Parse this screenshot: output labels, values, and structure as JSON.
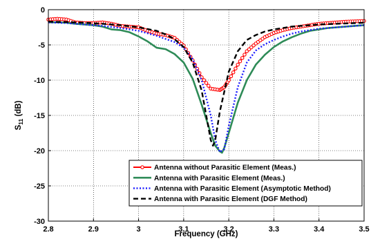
{
  "chart_data": {
    "type": "line",
    "xlabel": "Frequency (GHz)",
    "ylabel_main": "S",
    "ylabel_sub": "11",
    "ylabel_unit": " (dB)",
    "xlim": [
      2.8,
      3.5
    ],
    "ylim": [
      -30,
      0
    ],
    "xticks": [
      2.8,
      2.9,
      3.0,
      3.1,
      3.2,
      3.3,
      3.4,
      3.5
    ],
    "xtick_labels": [
      "2.8",
      "2.9",
      "3",
      "3.1",
      "3.2",
      "3.3",
      "3.4",
      "3.5"
    ],
    "yticks": [
      0,
      -5,
      -10,
      -15,
      -20,
      -25,
      -30
    ],
    "ytick_labels": [
      "0",
      "-5",
      "-10",
      "-15",
      "-20",
      "-25",
      "-30"
    ],
    "grid": true,
    "legend_position": "bottom-right",
    "series": [
      {
        "name": "Antenna without Parasitic Element (Meas.)",
        "color": "#ff0000",
        "style": "solid-circle-markers",
        "x": [
          2.8,
          2.82,
          2.84,
          2.86,
          2.88,
          2.9,
          2.92,
          2.94,
          2.96,
          2.98,
          3.0,
          3.02,
          3.04,
          3.06,
          3.08,
          3.1,
          3.12,
          3.14,
          3.16,
          3.18,
          3.19,
          3.2,
          3.22,
          3.24,
          3.26,
          3.28,
          3.3,
          3.32,
          3.34,
          3.36,
          3.38,
          3.4,
          3.42,
          3.44,
          3.46,
          3.48,
          3.5
        ],
        "y": [
          -1.4,
          -1.3,
          -1.4,
          -1.8,
          -1.9,
          -1.9,
          -1.8,
          -2.0,
          -2.3,
          -2.4,
          -2.5,
          -3.0,
          -3.4,
          -3.6,
          -4.0,
          -5.1,
          -7.2,
          -9.6,
          -11.2,
          -11.4,
          -11.0,
          -10.0,
          -7.8,
          -5.9,
          -4.8,
          -3.9,
          -3.3,
          -2.9,
          -2.6,
          -2.4,
          -2.2,
          -2.0,
          -1.9,
          -1.8,
          -1.7,
          -1.65,
          -1.6
        ]
      },
      {
        "name": "Antenna with Parasitic Element (Meas.)",
        "color": "#2e8b57",
        "style": "solid",
        "x": [
          2.8,
          2.82,
          2.84,
          2.86,
          2.88,
          2.9,
          2.92,
          2.94,
          2.96,
          2.98,
          3.0,
          3.02,
          3.04,
          3.06,
          3.08,
          3.1,
          3.12,
          3.14,
          3.16,
          3.17,
          3.18,
          3.185,
          3.19,
          3.2,
          3.22,
          3.24,
          3.26,
          3.28,
          3.3,
          3.32,
          3.34,
          3.36,
          3.38,
          3.4,
          3.42,
          3.44,
          3.46,
          3.48,
          3.5
        ],
        "y": [
          -1.8,
          -1.8,
          -1.85,
          -2.0,
          -2.1,
          -2.2,
          -2.4,
          -2.8,
          -2.9,
          -3.2,
          -3.8,
          -4.5,
          -5.4,
          -5.6,
          -6.3,
          -7.5,
          -9.8,
          -13.5,
          -17.5,
          -19.3,
          -20.1,
          -20.3,
          -19.6,
          -17.5,
          -13.2,
          -10.0,
          -7.8,
          -6.4,
          -5.3,
          -4.5,
          -3.9,
          -3.4,
          -3.0,
          -2.8,
          -2.6,
          -2.5,
          -2.4,
          -2.3,
          -2.2
        ]
      },
      {
        "name": "Antenna with Parasitic Element (Asymptotic Method)",
        "color": "#1a1aff",
        "style": "dotted",
        "x": [
          2.8,
          2.84,
          2.88,
          2.92,
          2.96,
          3.0,
          3.04,
          3.08,
          3.1,
          3.12,
          3.14,
          3.16,
          3.17,
          3.18,
          3.19,
          3.2,
          3.22,
          3.24,
          3.26,
          3.28,
          3.3,
          3.32,
          3.34,
          3.36,
          3.38,
          3.4,
          3.44,
          3.48,
          3.5
        ],
        "y": [
          -1.8,
          -1.9,
          -2.1,
          -2.3,
          -2.6,
          -3.0,
          -3.7,
          -4.6,
          -5.4,
          -7.0,
          -10.0,
          -15.0,
          -18.5,
          -20.2,
          -19.8,
          -16.5,
          -11.0,
          -7.5,
          -5.8,
          -4.9,
          -4.3,
          -3.8,
          -3.4,
          -3.1,
          -2.9,
          -2.7,
          -2.5,
          -2.3,
          -2.2
        ]
      },
      {
        "name": "Antenna with Parasitic Element (DGF Method)",
        "color": "#000000",
        "style": "dashed",
        "x": [
          2.8,
          2.84,
          2.88,
          2.92,
          2.96,
          3.0,
          3.04,
          3.06,
          3.08,
          3.1,
          3.12,
          3.14,
          3.15,
          3.16,
          3.165,
          3.17,
          3.18,
          3.2,
          3.22,
          3.24,
          3.26,
          3.28,
          3.3,
          3.32,
          3.34,
          3.36,
          3.38,
          3.4,
          3.44,
          3.48,
          3.5
        ],
        "y": [
          -1.7,
          -1.75,
          -1.85,
          -2.0,
          -2.2,
          -2.5,
          -3.0,
          -3.5,
          -4.2,
          -5.3,
          -7.5,
          -11.5,
          -15.0,
          -18.5,
          -19.3,
          -18.5,
          -14.5,
          -8.8,
          -5.9,
          -4.3,
          -3.6,
          -3.1,
          -2.8,
          -2.6,
          -2.4,
          -2.3,
          -2.2,
          -2.1,
          -2.0,
          -1.9,
          -1.85
        ]
      }
    ]
  }
}
